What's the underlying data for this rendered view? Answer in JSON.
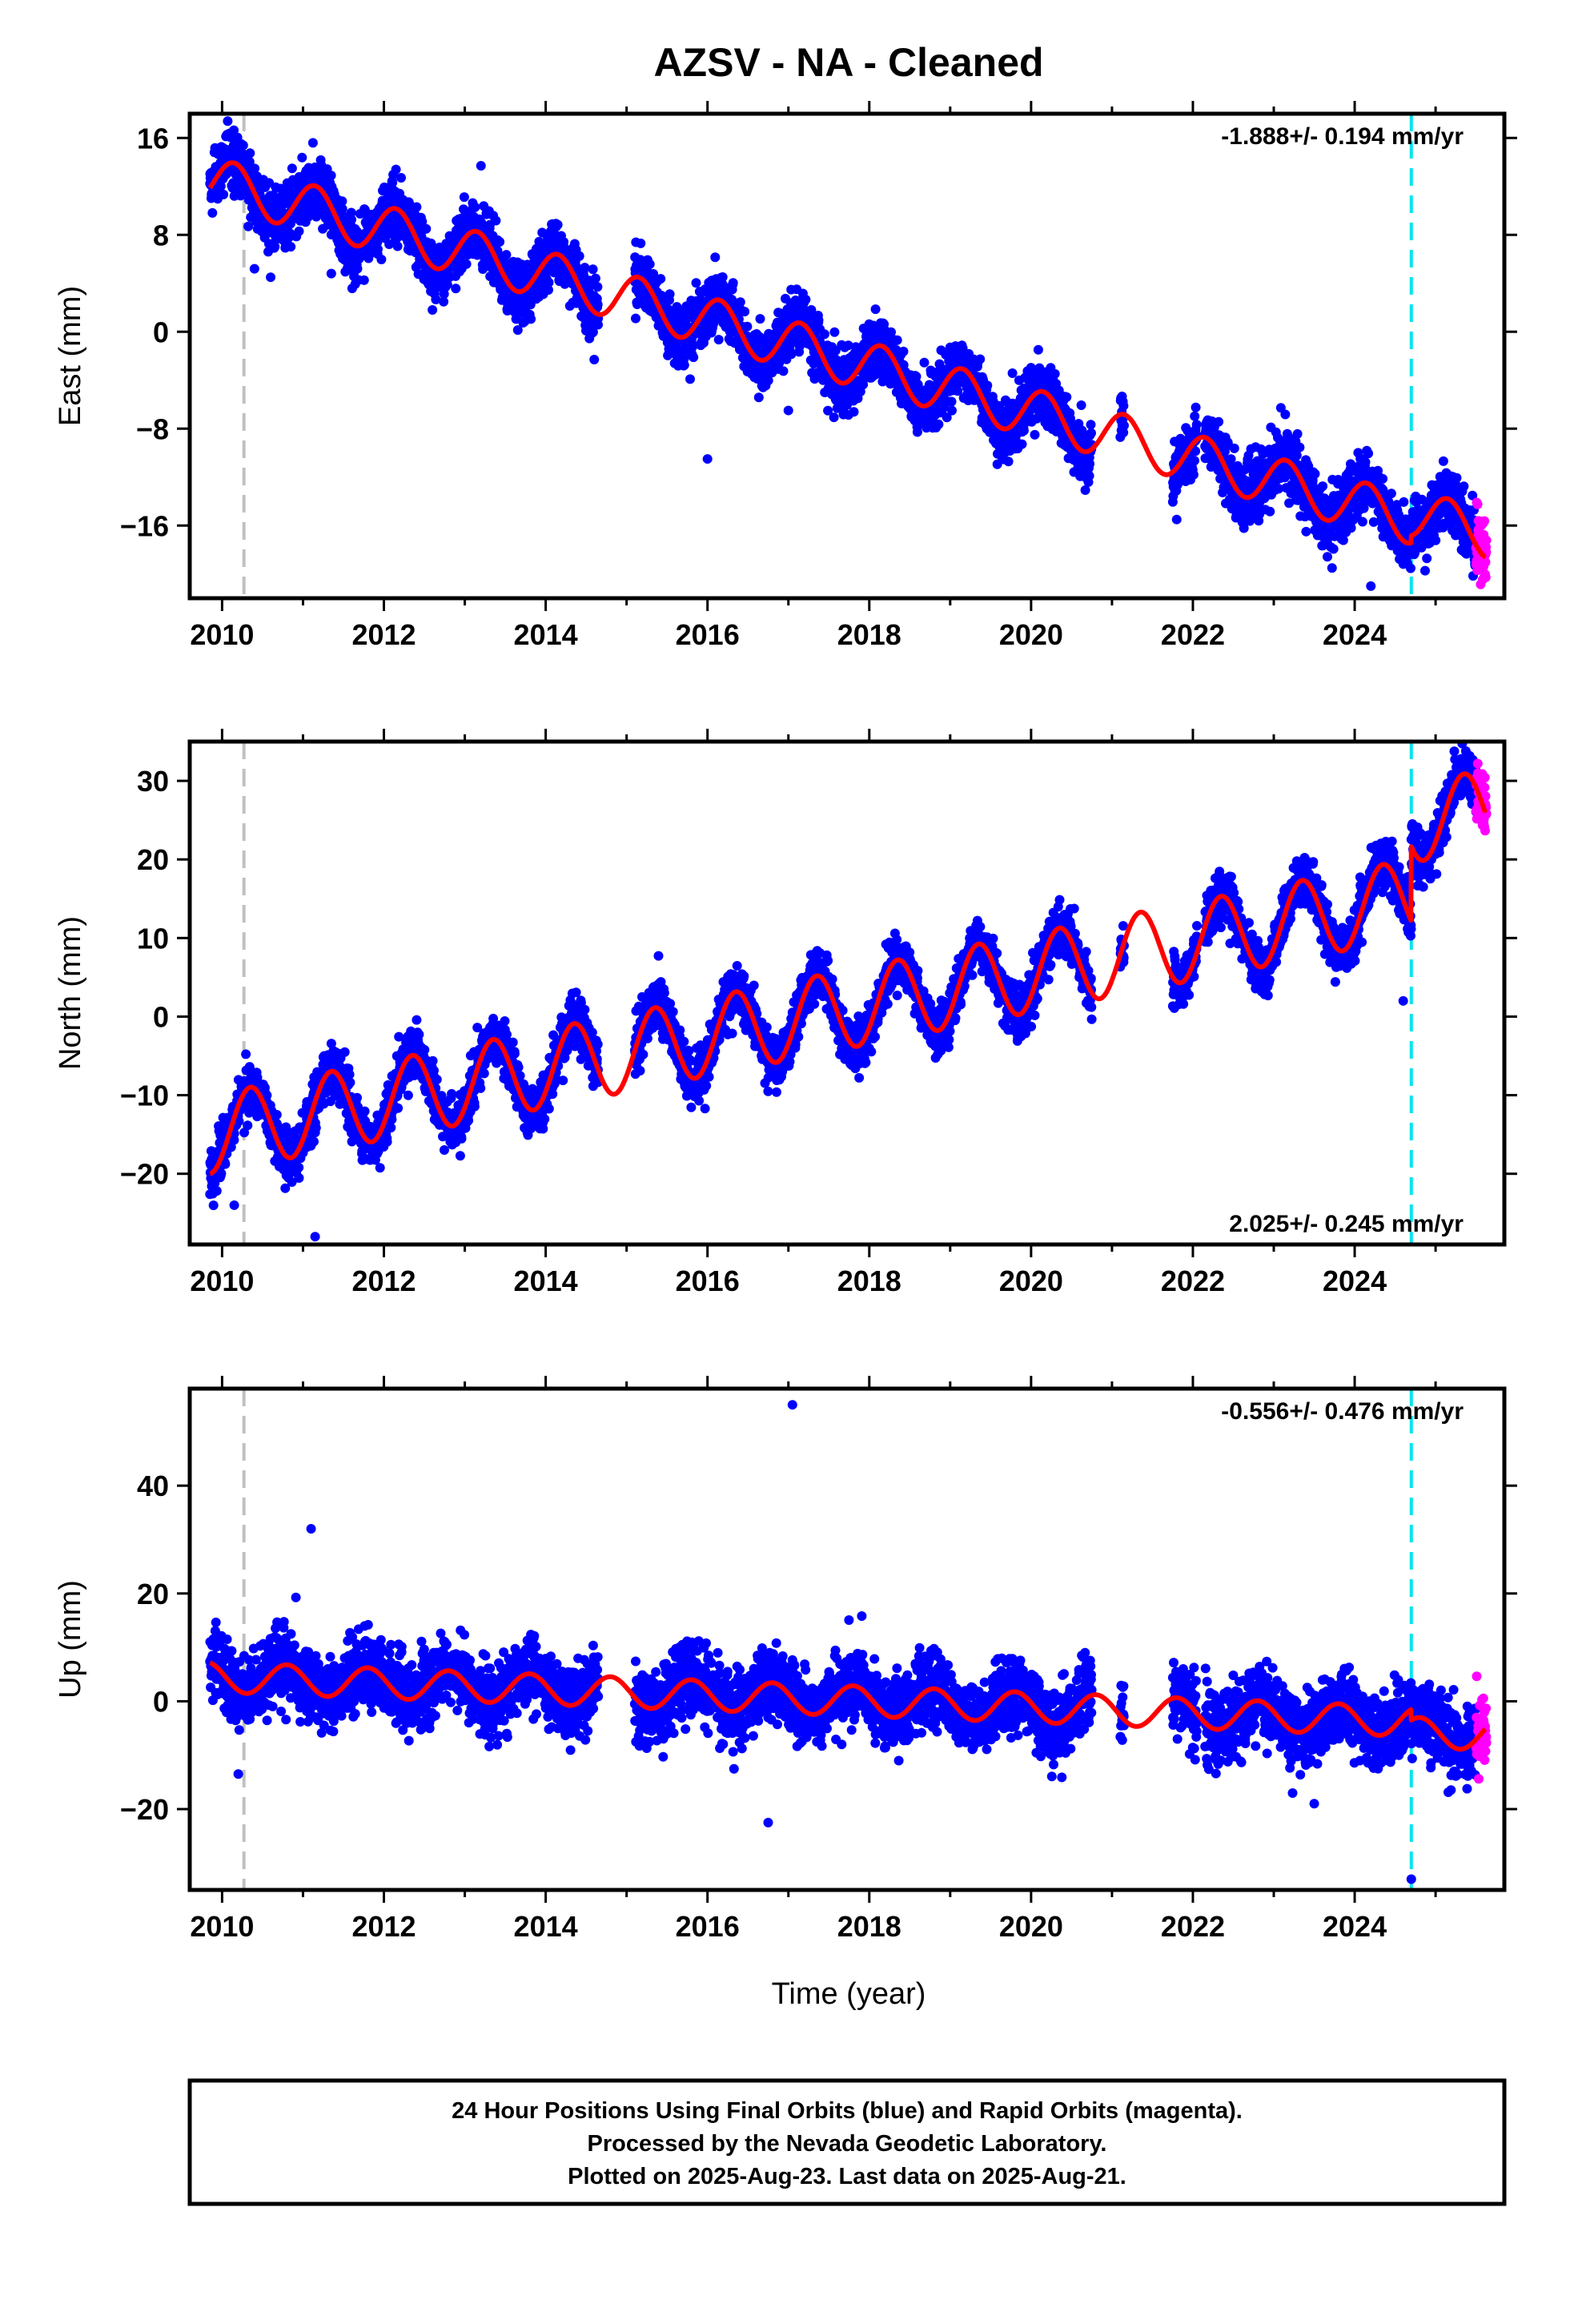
{
  "title": "AZSV  - NA - Cleaned",
  "xlabel": "Time (year)",
  "footer": {
    "line1": "24 Hour Positions Using Final Orbits (blue) and Rapid Orbits (magenta).",
    "line2": "Processed by the Nevada Geodetic Laboratory.",
    "line3": "Plotted on 2025-Aug-23. Last data on 2025-Aug-21."
  },
  "colors": {
    "final": "#0000ff",
    "rapid": "#ff00ff",
    "model": "#ff0000",
    "equipment_change": "#c0c0c0",
    "event": "#00e5ee"
  },
  "chart_data": [
    {
      "type": "scatter",
      "component": "east",
      "ylabel": "East (mm)",
      "rate_label": "-1.888+/- 0.194 mm/yr",
      "rate_position": "top-right",
      "xlim": [
        2009.6,
        2025.85
      ],
      "ylim": [
        -22,
        18
      ],
      "yticks": [
        16,
        8,
        0,
        -8,
        -16
      ],
      "xticks": [
        2010,
        2012,
        2014,
        2016,
        2018,
        2020,
        2022,
        2024
      ],
      "grid": false,
      "vlines": [
        {
          "x": 2010.27,
          "color": "gray"
        },
        {
          "x": 2024.7,
          "color": "cyan"
        }
      ],
      "model": {
        "start": 2009.85,
        "end": 2025.62,
        "intercept": 12.5,
        "rate": -1.888,
        "amplitude": 2.0,
        "phase": 0.9,
        "offsets": [
          {
            "x": 2024.7,
            "dy": 0.6
          }
        ]
      },
      "final_span": [
        2009.85,
        2025.5
      ],
      "rapid_span": [
        2025.5,
        2025.63
      ],
      "gaps": [
        [
          2014.65,
          2015.1
        ],
        [
          2020.75,
          2021.1
        ],
        [
          2021.15,
          2021.75
        ],
        [
          2022.05,
          2022.15
        ]
      ],
      "scatter_sd": 1.4,
      "outliers": [
        [
          2016.0,
          -10.5
        ],
        [
          2017.0,
          -6.5
        ],
        [
          2024.2,
          -21
        ],
        [
          2021.8,
          -15.5
        ],
        [
          2010.4,
          5.2
        ],
        [
          2010.6,
          4.5
        ],
        [
          2011.35,
          4.8
        ],
        [
          2012.6,
          1.8
        ],
        [
          2013.2,
          13.7
        ],
        [
          2014.6,
          -2.3
        ],
        [
          2023.4,
          -16.5
        ]
      ]
    },
    {
      "type": "scatter",
      "component": "north",
      "ylabel": "North (mm)",
      "rate_label": "2.025+/- 0.245 mm/yr",
      "rate_position": "bottom-right",
      "xlim": [
        2009.6,
        2025.85
      ],
      "ylim": [
        -29,
        35
      ],
      "yticks": [
        30,
        20,
        10,
        0,
        -10,
        -20
      ],
      "xticks": [
        2010,
        2012,
        2014,
        2016,
        2018,
        2020,
        2022,
        2024
      ],
      "grid": false,
      "vlines": [
        {
          "x": 2010.27,
          "color": "gray"
        },
        {
          "x": 2024.7,
          "color": "cyan"
        }
      ],
      "model": {
        "start": 2009.85,
        "end": 2025.62,
        "intercept": -15.0,
        "rate": 2.025,
        "amplitude": 5.0,
        "phase": 0.1,
        "offsets": [
          {
            "x": 2024.7,
            "dy": 9.5
          }
        ]
      },
      "final_span": [
        2009.85,
        2025.5
      ],
      "rapid_span": [
        2025.5,
        2025.63
      ],
      "gaps": [
        [
          2014.65,
          2015.1
        ],
        [
          2020.75,
          2021.1
        ],
        [
          2021.15,
          2021.75
        ],
        [
          2022.05,
          2022.15
        ]
      ],
      "scatter_sd": 1.8,
      "outliers": [
        [
          2011.15,
          -28
        ],
        [
          2010.15,
          -24
        ],
        [
          2024.6,
          2
        ],
        [
          2021.9,
          3
        ]
      ]
    },
    {
      "type": "scatter",
      "component": "up",
      "ylabel": "Up (mm)",
      "rate_label": "-0.556+/- 0.476 mm/yr",
      "rate_position": "top-right",
      "xlim": [
        2009.6,
        2025.85
      ],
      "ylim": [
        -35,
        58
      ],
      "yticks": [
        40,
        20,
        0,
        -20
      ],
      "xticks": [
        2010,
        2012,
        2014,
        2016,
        2018,
        2020,
        2022,
        2024
      ],
      "grid": false,
      "vlines": [
        {
          "x": 2010.27,
          "color": "gray"
        },
        {
          "x": 2024.7,
          "color": "cyan"
        }
      ],
      "model": {
        "start": 2009.85,
        "end": 2025.62,
        "intercept": 4.5,
        "rate": -0.556,
        "amplitude": 2.8,
        "phase": 0.55,
        "offsets": [
          {
            "x": 2024.7,
            "dy": -2.0
          }
        ]
      },
      "final_span": [
        2009.85,
        2025.5
      ],
      "rapid_span": [
        2025.5,
        2025.63
      ],
      "gaps": [
        [
          2014.65,
          2015.1
        ],
        [
          2020.75,
          2021.1
        ],
        [
          2021.15,
          2021.75
        ],
        [
          2022.05,
          2022.15
        ]
      ],
      "scatter_sd": 3.6,
      "outliers": [
        [
          2017.05,
          55
        ],
        [
          2011.1,
          32
        ],
        [
          2016.75,
          -22.5
        ],
        [
          2010.2,
          -13.5
        ],
        [
          2024.7,
          -33
        ],
        [
          2023.5,
          -19
        ]
      ]
    }
  ]
}
